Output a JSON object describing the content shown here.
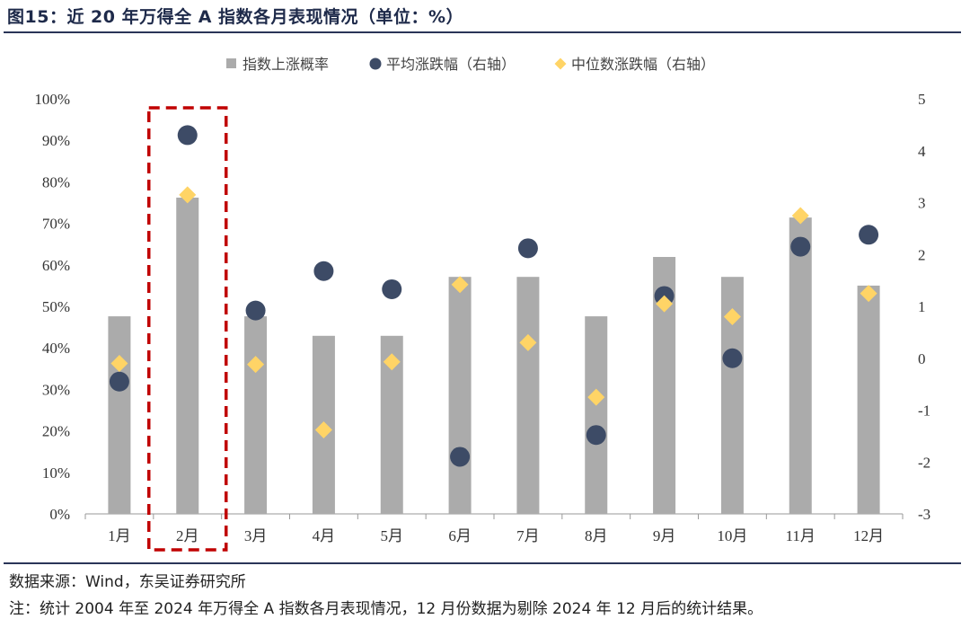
{
  "figure": {
    "title": "图15：近 20 年万得全 A 指数各月表现情况（单位：%）",
    "source": "数据来源：Wind，东吴证券研究所",
    "note": "注：统计 2004 年至 2024 年万得全 A 指数各月表现情况，12 月份数据为剔除 2024 年 12 月后的统计结果。"
  },
  "colors": {
    "bar": "#ababab",
    "mean_marker": "#3d4b66",
    "median_marker": "#ffd466",
    "highlight_box": "#c00000",
    "rule": "#2a3558"
  },
  "chart_data": {
    "type": "bar",
    "categories": [
      "1月",
      "2月",
      "3月",
      "4月",
      "5月",
      "6月",
      "7月",
      "8月",
      "9月",
      "10月",
      "11月",
      "12月"
    ],
    "series": [
      {
        "name": "指数上涨概率",
        "type": "bar",
        "axis": "left",
        "values": [
          47.6,
          76.2,
          47.6,
          42.9,
          42.9,
          57.1,
          57.1,
          47.6,
          61.9,
          57.1,
          71.4,
          55.0
        ]
      },
      {
        "name": "平均涨跌幅（右轴）",
        "type": "scatter",
        "axis": "right",
        "marker": "circle",
        "values": [
          -0.45,
          4.3,
          0.92,
          1.68,
          1.33,
          -1.9,
          2.12,
          -1.48,
          1.2,
          0.0,
          2.15,
          2.38
        ]
      },
      {
        "name": "中位数涨跌幅（右轴）",
        "type": "scatter",
        "axis": "right",
        "marker": "diamond",
        "values": [
          -0.1,
          3.15,
          -0.12,
          -1.38,
          -0.07,
          1.42,
          0.3,
          -0.75,
          1.05,
          0.8,
          2.75,
          1.25
        ]
      }
    ],
    "ylim_left": [
      0,
      100
    ],
    "ylim_right": [
      -3,
      5
    ],
    "yticks_left": [
      "0%",
      "10%",
      "20%",
      "30%",
      "40%",
      "50%",
      "60%",
      "70%",
      "80%",
      "90%",
      "100%"
    ],
    "yticks_right": [
      "-3",
      "-2",
      "-1",
      "0",
      "1",
      "2",
      "3",
      "4",
      "5"
    ],
    "legend": "top-center",
    "grid": false,
    "highlight_category": "2月"
  }
}
